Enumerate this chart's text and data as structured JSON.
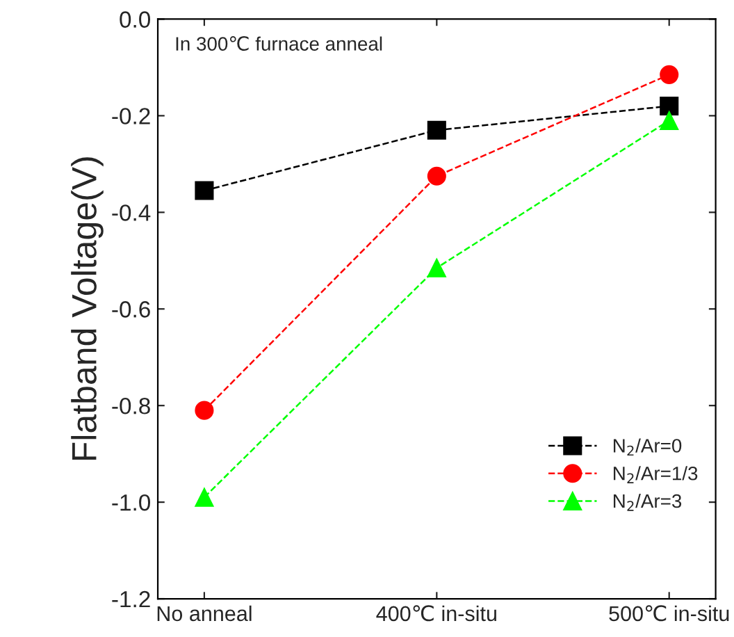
{
  "chart_data": {
    "type": "line",
    "ylabel": "Flatband Voltage(V)",
    "categories": [
      "No anneal",
      "400℃ in-situ",
      "500℃ in-situ"
    ],
    "series": [
      {
        "name": "N$_{2}$/Ar=0",
        "color": "#000000",
        "marker": "square",
        "values": [
          -0.355,
          -0.23,
          -0.18
        ]
      },
      {
        "name": "N$_{2}$/Ar=1/3",
        "color": "#ff0000",
        "marker": "circle",
        "values": [
          -0.81,
          -0.325,
          -0.115
        ]
      },
      {
        "name": "N$_{2}$/Ar=3",
        "color": "#00ff00",
        "marker": "triangle",
        "values": [
          -0.99,
          -0.515,
          -0.21
        ]
      }
    ],
    "line_style": "dashed",
    "ylim": [
      -1.2,
      0.0
    ],
    "yticks": [
      {
        "value": -1.2,
        "label": "-1.2"
      },
      {
        "value": -1.0,
        "label": "-1.0"
      },
      {
        "value": -0.8,
        "label": "-0.8"
      },
      {
        "value": -0.6,
        "label": "-0.6"
      },
      {
        "value": -0.4,
        "label": "-0.4"
      },
      {
        "value": -0.2,
        "label": "-0.2"
      },
      {
        "value": 0.0,
        "label": "0.0"
      }
    ],
    "annotations": [
      "In 300℃ furnace anneal"
    ],
    "legend": "bottom right",
    "grid": false
  }
}
